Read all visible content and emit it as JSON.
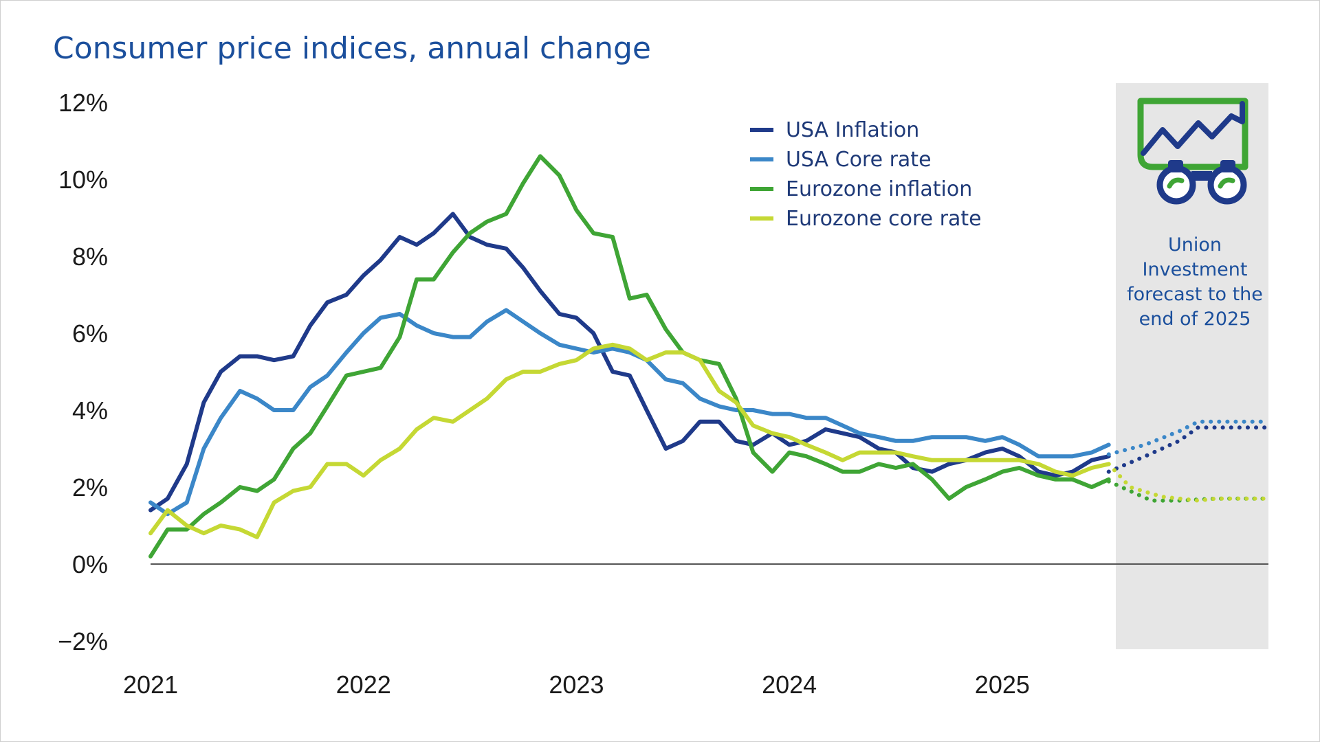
{
  "chart_data": {
    "type": "line",
    "title": "Consumer price indices, annual change",
    "xlabel": "",
    "ylabel": "",
    "ylim": [
      -2,
      12
    ],
    "xlim": [
      2021.0,
      2026.25
    ],
    "y_ticks": [
      "−2%",
      "0%",
      "2%",
      "4%",
      "6%",
      "8%",
      "10%",
      "12%"
    ],
    "y_tick_values": [
      -2,
      0,
      2,
      4,
      6,
      8,
      10,
      12
    ],
    "x_ticks": [
      "2021",
      "2022",
      "2023",
      "2024",
      "2025"
    ],
    "x_tick_values": [
      2021,
      2022,
      2023,
      2024,
      2025
    ],
    "grid": false,
    "legend_position": "top-center",
    "forecast_region": {
      "start": 2025.55,
      "end": 2026.25,
      "label": [
        "Union",
        "Investment",
        "forecast to the",
        "end of 2025"
      ]
    },
    "series": [
      {
        "name": "USA Inflation",
        "color": "#1f3a8a",
        "x": [
          2021.0,
          2021.08,
          2021.17,
          2021.25,
          2021.33,
          2021.42,
          2021.5,
          2021.58,
          2021.67,
          2021.75,
          2021.83,
          2021.92,
          2022.0,
          2022.08,
          2022.17,
          2022.25,
          2022.33,
          2022.42,
          2022.5,
          2022.58,
          2022.67,
          2022.75,
          2022.83,
          2022.92,
          2023.0,
          2023.08,
          2023.17,
          2023.25,
          2023.33,
          2023.42,
          2023.5,
          2023.58,
          2023.67,
          2023.75,
          2023.83,
          2023.92,
          2024.0,
          2024.08,
          2024.17,
          2024.25,
          2024.33,
          2024.42,
          2024.5,
          2024.58,
          2024.67,
          2024.75,
          2024.83,
          2024.92,
          2025.0,
          2025.08,
          2025.17,
          2025.25,
          2025.33,
          2025.42,
          2025.5
        ],
        "values": [
          1.4,
          1.7,
          2.6,
          4.2,
          5.0,
          5.4,
          5.4,
          5.3,
          5.4,
          6.2,
          6.8,
          7.0,
          7.5,
          7.9,
          8.5,
          8.3,
          8.6,
          9.1,
          8.5,
          8.3,
          8.2,
          7.7,
          7.1,
          6.5,
          6.4,
          6.0,
          5.0,
          4.9,
          4.0,
          3.0,
          3.2,
          3.7,
          3.7,
          3.2,
          3.1,
          3.4,
          3.1,
          3.2,
          3.5,
          3.4,
          3.3,
          3.0,
          2.9,
          2.5,
          2.4,
          2.6,
          2.7,
          2.9,
          3.0,
          2.8,
          2.4,
          2.3,
          2.4,
          2.7,
          2.8
        ],
        "forecast_x": [
          2025.5,
          2025.67,
          2025.83,
          2025.92,
          2026.0,
          2026.25
        ],
        "forecast_values": [
          2.4,
          2.8,
          3.2,
          3.55,
          3.55,
          3.55
        ]
      },
      {
        "name": "USA Core rate",
        "color": "#3b87c8",
        "x": [
          2021.0,
          2021.08,
          2021.17,
          2021.25,
          2021.33,
          2021.42,
          2021.5,
          2021.58,
          2021.67,
          2021.75,
          2021.83,
          2021.92,
          2022.0,
          2022.08,
          2022.17,
          2022.25,
          2022.33,
          2022.42,
          2022.5,
          2022.58,
          2022.67,
          2022.75,
          2022.83,
          2022.92,
          2023.0,
          2023.08,
          2023.17,
          2023.25,
          2023.33,
          2023.42,
          2023.5,
          2023.58,
          2023.67,
          2023.75,
          2023.83,
          2023.92,
          2024.0,
          2024.08,
          2024.17,
          2024.25,
          2024.33,
          2024.42,
          2024.5,
          2024.58,
          2024.67,
          2024.75,
          2024.83,
          2024.92,
          2025.0,
          2025.08,
          2025.17,
          2025.25,
          2025.33,
          2025.42,
          2025.5
        ],
        "values": [
          1.6,
          1.3,
          1.6,
          3.0,
          3.8,
          4.5,
          4.3,
          4.0,
          4.0,
          4.6,
          4.9,
          5.5,
          6.0,
          6.4,
          6.5,
          6.2,
          6.0,
          5.9,
          5.9,
          6.3,
          6.6,
          6.3,
          6.0,
          5.7,
          5.6,
          5.5,
          5.6,
          5.5,
          5.3,
          4.8,
          4.7,
          4.3,
          4.1,
          4.0,
          4.0,
          3.9,
          3.9,
          3.8,
          3.8,
          3.6,
          3.4,
          3.3,
          3.2,
          3.2,
          3.3,
          3.3,
          3.3,
          3.2,
          3.3,
          3.1,
          2.8,
          2.8,
          2.8,
          2.9,
          3.1
        ],
        "forecast_x": [
          2025.5,
          2025.67,
          2025.83,
          2025.92,
          2026.0,
          2026.25
        ],
        "forecast_values": [
          2.85,
          3.1,
          3.45,
          3.7,
          3.7,
          3.7
        ]
      },
      {
        "name": "Eurozone inflation",
        "color": "#3fa535",
        "x": [
          2021.0,
          2021.08,
          2021.17,
          2021.25,
          2021.33,
          2021.42,
          2021.5,
          2021.58,
          2021.67,
          2021.75,
          2021.83,
          2021.92,
          2022.0,
          2022.08,
          2022.17,
          2022.25,
          2022.33,
          2022.42,
          2022.5,
          2022.58,
          2022.67,
          2022.75,
          2022.83,
          2022.92,
          2023.0,
          2023.08,
          2023.17,
          2023.25,
          2023.33,
          2023.42,
          2023.5,
          2023.58,
          2023.67,
          2023.75,
          2023.83,
          2023.92,
          2024.0,
          2024.08,
          2024.17,
          2024.25,
          2024.33,
          2024.42,
          2024.5,
          2024.58,
          2024.67,
          2024.75,
          2024.83,
          2024.92,
          2025.0,
          2025.08,
          2025.17,
          2025.25,
          2025.33,
          2025.42,
          2025.5
        ],
        "values": [
          0.2,
          0.9,
          0.9,
          1.3,
          1.6,
          2.0,
          1.9,
          2.2,
          3.0,
          3.4,
          4.1,
          4.9,
          5.0,
          5.1,
          5.9,
          7.4,
          7.4,
          8.1,
          8.6,
          8.9,
          9.1,
          9.9,
          10.6,
          10.1,
          9.2,
          8.6,
          8.5,
          6.9,
          7.0,
          6.1,
          5.5,
          5.3,
          5.2,
          4.3,
          2.9,
          2.4,
          2.9,
          2.8,
          2.6,
          2.4,
          2.4,
          2.6,
          2.5,
          2.6,
          2.2,
          1.7,
          2.0,
          2.2,
          2.4,
          2.5,
          2.3,
          2.2,
          2.2,
          2.0,
          2.2
        ],
        "forecast_x": [
          2025.5,
          2025.6,
          2025.7,
          2025.83,
          2026.0,
          2026.25
        ],
        "forecast_values": [
          2.15,
          1.9,
          1.65,
          1.65,
          1.7,
          1.7
        ]
      },
      {
        "name": "Eurozone core rate",
        "color": "#c5d834",
        "x": [
          2021.0,
          2021.08,
          2021.17,
          2021.25,
          2021.33,
          2021.42,
          2021.5,
          2021.58,
          2021.67,
          2021.75,
          2021.83,
          2021.92,
          2022.0,
          2022.08,
          2022.17,
          2022.25,
          2022.33,
          2022.42,
          2022.5,
          2022.58,
          2022.67,
          2022.75,
          2022.83,
          2022.92,
          2023.0,
          2023.08,
          2023.17,
          2023.25,
          2023.33,
          2023.42,
          2023.5,
          2023.58,
          2023.67,
          2023.75,
          2023.83,
          2023.92,
          2024.0,
          2024.08,
          2024.17,
          2024.25,
          2024.33,
          2024.42,
          2024.5,
          2024.58,
          2024.67,
          2024.75,
          2024.83,
          2024.92,
          2025.0,
          2025.08,
          2025.17,
          2025.25,
          2025.33,
          2025.42,
          2025.5
        ],
        "values": [
          0.8,
          1.4,
          1.0,
          0.8,
          1.0,
          0.9,
          0.7,
          1.6,
          1.9,
          2.0,
          2.6,
          2.6,
          2.3,
          2.7,
          3.0,
          3.5,
          3.8,
          3.7,
          4.0,
          4.3,
          4.8,
          5.0,
          5.0,
          5.2,
          5.3,
          5.6,
          5.7,
          5.6,
          5.3,
          5.5,
          5.5,
          5.3,
          4.5,
          4.2,
          3.6,
          3.4,
          3.3,
          3.1,
          2.9,
          2.7,
          2.9,
          2.9,
          2.9,
          2.8,
          2.7,
          2.7,
          2.7,
          2.7,
          2.7,
          2.7,
          2.6,
          2.4,
          2.3,
          2.5,
          2.6
        ],
        "forecast_x": [
          2025.5,
          2025.6,
          2025.75,
          2025.92,
          2026.0,
          2026.25
        ],
        "forecast_values": [
          2.6,
          2.0,
          1.75,
          1.65,
          1.7,
          1.7
        ]
      }
    ]
  },
  "forecast_panel": {
    "icon": "binoculars-chart-icon",
    "panel_color": "#e6e6e6",
    "icon_frame_color": "#3fa535",
    "icon_line_color": "#1f3a8a"
  },
  "colors": {
    "title": "#1b4f9c",
    "axis_text": "#1a1a1a",
    "zero_line": "#555555"
  }
}
